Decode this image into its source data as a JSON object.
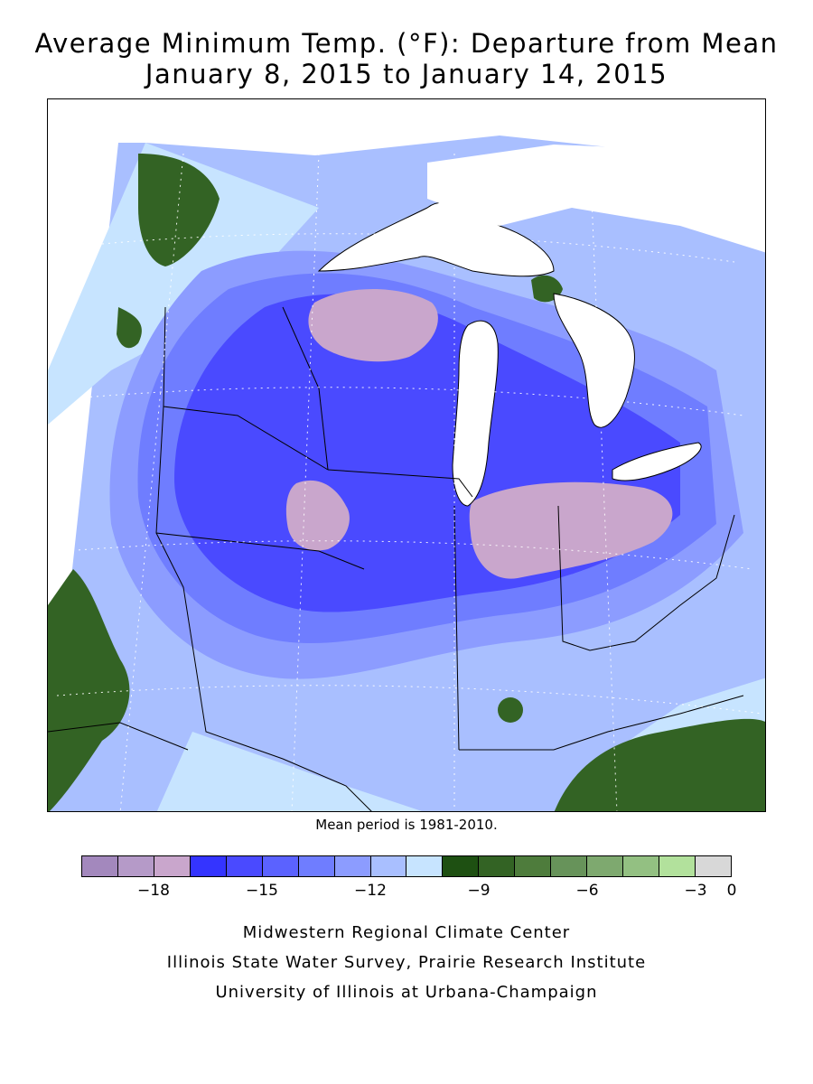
{
  "title_line1": "Average Minimum Temp. (°F): Departure from Mean",
  "title_line2": "January 8, 2015 to January 14, 2015",
  "mean_note": "Mean period is 1981-2010.",
  "legend": {
    "colors": [
      "#a388bd",
      "#b59ac8",
      "#c9a6cc",
      "#3434ff",
      "#4a4aff",
      "#5b62ff",
      "#6f7dff",
      "#8c9cff",
      "#a9bfff",
      "#c7e4ff",
      "#1e5012",
      "#336324",
      "#4e7c3c",
      "#67935a",
      "#7ea96f",
      "#93c082",
      "#b2e19c",
      "#d8d8d8"
    ],
    "ticks": [
      "-18",
      "-15",
      "-12",
      "-9",
      "-6",
      "-3",
      "0"
    ]
  },
  "credits": [
    "Midwestern Regional Climate Center",
    "Illinois State Water Survey, Prairie Research Institute",
    "University of Illinois at Urbana-Champaign"
  ]
}
